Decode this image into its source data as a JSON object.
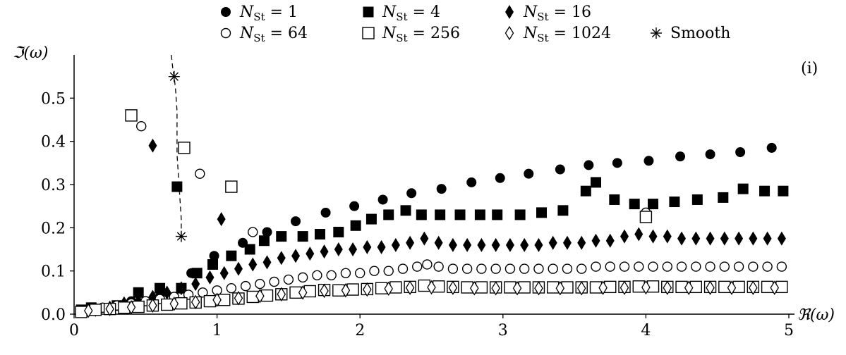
{
  "chart_data": {
    "type": "scatter",
    "title": "",
    "panel_label": "(i)",
    "xlabel": "ℜ(ω)",
    "ylabel": "ℑ(ω)",
    "xlim": [
      0,
      5
    ],
    "ylim": [
      0,
      0.6
    ],
    "x_ticks": [
      "0",
      "1",
      "2",
      "3",
      "4",
      "5"
    ],
    "y_ticks": [
      "0.0",
      "0.1",
      "0.2",
      "0.3",
      "0.4",
      "0.5"
    ],
    "legend_position": "top",
    "grid": false,
    "series": [
      {
        "name": "N_St = 1",
        "legend_html": "1",
        "marker": "filled-circle",
        "points": [
          [
            0.2,
            0.015
          ],
          [
            0.4,
            0.03
          ],
          [
            0.6,
            0.04
          ],
          [
            0.82,
            0.095
          ],
          [
            0.98,
            0.135
          ],
          [
            1.18,
            0.165
          ],
          [
            1.35,
            0.19
          ],
          [
            1.55,
            0.215
          ],
          [
            1.76,
            0.235
          ],
          [
            1.96,
            0.25
          ],
          [
            2.16,
            0.265
          ],
          [
            2.36,
            0.28
          ],
          [
            2.57,
            0.29
          ],
          [
            2.78,
            0.305
          ],
          [
            2.98,
            0.315
          ],
          [
            3.18,
            0.325
          ],
          [
            3.4,
            0.335
          ],
          [
            3.6,
            0.345
          ],
          [
            3.8,
            0.35
          ],
          [
            4.02,
            0.355
          ],
          [
            4.24,
            0.365
          ],
          [
            4.45,
            0.37
          ],
          [
            4.66,
            0.375
          ],
          [
            4.88,
            0.385
          ]
        ]
      },
      {
        "name": "N_St = 4",
        "legend_html": "4",
        "marker": "filled-square",
        "points": [
          [
            0.05,
            0.01
          ],
          [
            0.12,
            0.015
          ],
          [
            0.3,
            0.02
          ],
          [
            0.45,
            0.05
          ],
          [
            0.6,
            0.06
          ],
          [
            0.72,
            0.295
          ],
          [
            0.75,
            0.06
          ],
          [
            0.86,
            0.095
          ],
          [
            0.97,
            0.115
          ],
          [
            1.1,
            0.135
          ],
          [
            1.23,
            0.15
          ],
          [
            1.33,
            0.17
          ],
          [
            1.45,
            0.18
          ],
          [
            1.6,
            0.18
          ],
          [
            1.72,
            0.185
          ],
          [
            1.85,
            0.19
          ],
          [
            1.97,
            0.205
          ],
          [
            2.08,
            0.22
          ],
          [
            2.2,
            0.23
          ],
          [
            2.32,
            0.24
          ],
          [
            2.43,
            0.23
          ],
          [
            2.56,
            0.23
          ],
          [
            2.7,
            0.23
          ],
          [
            2.84,
            0.23
          ],
          [
            2.96,
            0.23
          ],
          [
            3.12,
            0.23
          ],
          [
            3.27,
            0.235
          ],
          [
            3.42,
            0.24
          ],
          [
            3.58,
            0.285
          ],
          [
            3.65,
            0.305
          ],
          [
            3.78,
            0.265
          ],
          [
            3.92,
            0.255
          ],
          [
            4.05,
            0.255
          ],
          [
            4.2,
            0.26
          ],
          [
            4.36,
            0.265
          ],
          [
            4.54,
            0.27
          ],
          [
            4.68,
            0.29
          ],
          [
            4.83,
            0.285
          ],
          [
            4.96,
            0.285
          ]
        ]
      },
      {
        "name": "N_St = 16",
        "legend_html": "16",
        "marker": "filled-diamond",
        "points": [
          [
            0.55,
            0.39
          ],
          [
            1.03,
            0.22
          ],
          [
            0.15,
            0.01
          ],
          [
            0.25,
            0.015
          ],
          [
            0.35,
            0.025
          ],
          [
            0.45,
            0.03
          ],
          [
            0.55,
            0.04
          ],
          [
            0.65,
            0.05
          ],
          [
            0.75,
            0.06
          ],
          [
            0.85,
            0.07
          ],
          [
            0.95,
            0.085
          ],
          [
            1.05,
            0.095
          ],
          [
            1.15,
            0.105
          ],
          [
            1.25,
            0.115
          ],
          [
            1.35,
            0.12
          ],
          [
            1.45,
            0.13
          ],
          [
            1.55,
            0.135
          ],
          [
            1.65,
            0.14
          ],
          [
            1.75,
            0.145
          ],
          [
            1.85,
            0.15
          ],
          [
            1.95,
            0.15
          ],
          [
            2.05,
            0.155
          ],
          [
            2.15,
            0.155
          ],
          [
            2.25,
            0.16
          ],
          [
            2.35,
            0.165
          ],
          [
            2.45,
            0.175
          ],
          [
            2.55,
            0.165
          ],
          [
            2.65,
            0.16
          ],
          [
            2.75,
            0.16
          ],
          [
            2.85,
            0.16
          ],
          [
            2.95,
            0.16
          ],
          [
            3.05,
            0.16
          ],
          [
            3.15,
            0.16
          ],
          [
            3.25,
            0.16
          ],
          [
            3.35,
            0.165
          ],
          [
            3.45,
            0.165
          ],
          [
            3.55,
            0.165
          ],
          [
            3.65,
            0.17
          ],
          [
            3.75,
            0.17
          ],
          [
            3.85,
            0.18
          ],
          [
            3.95,
            0.185
          ],
          [
            4.05,
            0.18
          ],
          [
            4.15,
            0.18
          ],
          [
            4.25,
            0.175
          ],
          [
            4.35,
            0.175
          ],
          [
            4.45,
            0.175
          ],
          [
            4.55,
            0.175
          ],
          [
            4.65,
            0.175
          ],
          [
            4.75,
            0.175
          ],
          [
            4.85,
            0.175
          ],
          [
            4.95,
            0.175
          ]
        ]
      },
      {
        "name": "N_St = 64",
        "legend_html": "64",
        "marker": "open-circle",
        "points": [
          [
            0.47,
            0.435
          ],
          [
            0.88,
            0.325
          ],
          [
            1.25,
            0.19
          ],
          [
            4.0,
            0.235
          ],
          [
            0.1,
            0.01
          ],
          [
            0.2,
            0.015
          ],
          [
            0.3,
            0.02
          ],
          [
            0.4,
            0.025
          ],
          [
            0.5,
            0.03
          ],
          [
            0.6,
            0.035
          ],
          [
            0.7,
            0.04
          ],
          [
            0.8,
            0.045
          ],
          [
            0.9,
            0.05
          ],
          [
            1.0,
            0.055
          ],
          [
            1.1,
            0.06
          ],
          [
            1.2,
            0.065
          ],
          [
            1.3,
            0.07
          ],
          [
            1.4,
            0.075
          ],
          [
            1.5,
            0.08
          ],
          [
            1.6,
            0.085
          ],
          [
            1.7,
            0.09
          ],
          [
            1.8,
            0.09
          ],
          [
            1.9,
            0.095
          ],
          [
            2.0,
            0.095
          ],
          [
            2.1,
            0.1
          ],
          [
            2.2,
            0.1
          ],
          [
            2.3,
            0.105
          ],
          [
            2.4,
            0.11
          ],
          [
            2.47,
            0.115
          ],
          [
            2.55,
            0.11
          ],
          [
            2.65,
            0.105
          ],
          [
            2.75,
            0.105
          ],
          [
            2.85,
            0.105
          ],
          [
            2.95,
            0.105
          ],
          [
            3.05,
            0.105
          ],
          [
            3.15,
            0.105
          ],
          [
            3.25,
            0.105
          ],
          [
            3.35,
            0.105
          ],
          [
            3.45,
            0.105
          ],
          [
            3.55,
            0.105
          ],
          [
            3.65,
            0.11
          ],
          [
            3.75,
            0.11
          ],
          [
            3.85,
            0.11
          ],
          [
            3.95,
            0.11
          ],
          [
            4.05,
            0.11
          ],
          [
            4.15,
            0.11
          ],
          [
            4.25,
            0.11
          ],
          [
            4.35,
            0.11
          ],
          [
            4.45,
            0.11
          ],
          [
            4.55,
            0.11
          ],
          [
            4.65,
            0.11
          ],
          [
            4.75,
            0.11
          ],
          [
            4.85,
            0.11
          ],
          [
            4.95,
            0.11
          ]
        ]
      },
      {
        "name": "N_St = 256",
        "legend_html": "256",
        "marker": "open-square",
        "points": [
          [
            0.4,
            0.46
          ],
          [
            0.77,
            0.385
          ],
          [
            1.1,
            0.295
          ],
          [
            4.0,
            0.225
          ],
          [
            0.05,
            0.005
          ],
          [
            0.15,
            0.01
          ],
          [
            0.25,
            0.012
          ],
          [
            0.35,
            0.015
          ],
          [
            0.45,
            0.017
          ],
          [
            0.55,
            0.02
          ],
          [
            0.65,
            0.022
          ],
          [
            0.75,
            0.025
          ],
          [
            0.85,
            0.027
          ],
          [
            0.95,
            0.03
          ],
          [
            1.05,
            0.033
          ],
          [
            1.15,
            0.036
          ],
          [
            1.25,
            0.04
          ],
          [
            1.35,
            0.043
          ],
          [
            1.45,
            0.046
          ],
          [
            1.55,
            0.05
          ],
          [
            1.65,
            0.053
          ],
          [
            1.75,
            0.056
          ],
          [
            1.85,
            0.055
          ],
          [
            1.95,
            0.057
          ],
          [
            2.05,
            0.058
          ],
          [
            2.15,
            0.06
          ],
          [
            2.25,
            0.062
          ],
          [
            2.35,
            0.063
          ],
          [
            2.45,
            0.066
          ],
          [
            2.55,
            0.064
          ],
          [
            2.65,
            0.063
          ],
          [
            2.75,
            0.062
          ],
          [
            2.85,
            0.062
          ],
          [
            2.95,
            0.062
          ],
          [
            3.05,
            0.062
          ],
          [
            3.15,
            0.062
          ],
          [
            3.25,
            0.062
          ],
          [
            3.35,
            0.062
          ],
          [
            3.45,
            0.062
          ],
          [
            3.55,
            0.062
          ],
          [
            3.65,
            0.062
          ],
          [
            3.75,
            0.063
          ],
          [
            3.85,
            0.063
          ],
          [
            3.95,
            0.064
          ],
          [
            4.05,
            0.064
          ],
          [
            4.15,
            0.063
          ],
          [
            4.25,
            0.063
          ],
          [
            4.35,
            0.063
          ],
          [
            4.45,
            0.063
          ],
          [
            4.55,
            0.063
          ],
          [
            4.65,
            0.063
          ],
          [
            4.75,
            0.063
          ],
          [
            4.85,
            0.063
          ],
          [
            4.95,
            0.063
          ]
        ]
      },
      {
        "name": "N_St = 1024",
        "legend_html": "1024",
        "marker": "open-diamond",
        "points": [
          [
            0.1,
            0.008
          ],
          [
            0.25,
            0.012
          ],
          [
            0.4,
            0.016
          ],
          [
            0.55,
            0.02
          ],
          [
            0.7,
            0.024
          ],
          [
            0.85,
            0.028
          ],
          [
            1.0,
            0.033
          ],
          [
            1.15,
            0.037
          ],
          [
            1.3,
            0.042
          ],
          [
            1.45,
            0.046
          ],
          [
            1.6,
            0.05
          ],
          [
            1.75,
            0.054
          ],
          [
            1.9,
            0.055
          ],
          [
            2.05,
            0.057
          ],
          [
            2.2,
            0.059
          ],
          [
            2.35,
            0.061
          ],
          [
            2.5,
            0.062
          ],
          [
            2.65,
            0.061
          ],
          [
            2.8,
            0.06
          ],
          [
            2.95,
            0.06
          ],
          [
            3.1,
            0.06
          ],
          [
            3.25,
            0.06
          ],
          [
            3.4,
            0.06
          ],
          [
            3.55,
            0.06
          ],
          [
            3.7,
            0.061
          ],
          [
            3.85,
            0.061
          ],
          [
            4.0,
            0.062
          ],
          [
            4.15,
            0.061
          ],
          [
            4.3,
            0.061
          ],
          [
            4.45,
            0.061
          ],
          [
            4.6,
            0.061
          ],
          [
            4.75,
            0.061
          ],
          [
            4.9,
            0.061
          ]
        ]
      },
      {
        "name": "Smooth",
        "legend_html": "Smooth",
        "marker": "asterisk",
        "points": [
          [
            0.7,
            0.55
          ],
          [
            0.75,
            0.18
          ]
        ],
        "curve": [
          [
            0.68,
            0.6
          ],
          [
            0.69,
            0.57
          ],
          [
            0.7,
            0.55
          ],
          [
            0.71,
            0.52
          ],
          [
            0.72,
            0.47
          ],
          [
            0.72,
            0.42
          ],
          [
            0.72,
            0.37
          ],
          [
            0.73,
            0.32
          ],
          [
            0.74,
            0.27
          ],
          [
            0.75,
            0.22
          ],
          [
            0.75,
            0.18
          ]
        ]
      }
    ]
  }
}
